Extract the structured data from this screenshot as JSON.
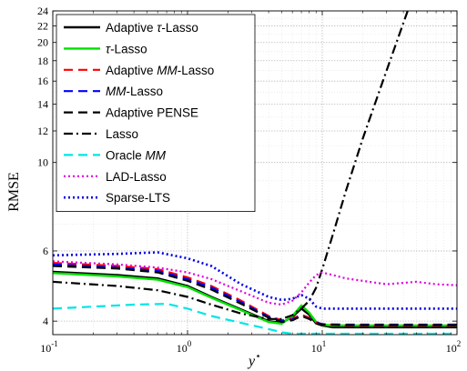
{
  "chart_data": {
    "type": "line",
    "xlabel": "y⋆",
    "ylabel": "RMSE",
    "xscale": "log",
    "yscale": "log",
    "xlim": [
      0.1,
      100
    ],
    "ylim": [
      3.7,
      24
    ],
    "grid": true,
    "legend_position": "top-left",
    "x_ticks": [
      {
        "value": 0.1,
        "base": "10",
        "exp": "-1"
      },
      {
        "value": 1,
        "base": "10",
        "exp": "0"
      },
      {
        "value": 10,
        "base": "10",
        "exp": "1"
      },
      {
        "value": 100,
        "base": "10",
        "exp": "2"
      }
    ],
    "y_ticks": [
      {
        "value": 4,
        "label": "4"
      },
      {
        "value": 6,
        "label": "6"
      },
      {
        "value": 10,
        "label": "10"
      },
      {
        "value": 12,
        "label": "12"
      },
      {
        "value": 14,
        "label": "14"
      },
      {
        "value": 16,
        "label": "16"
      },
      {
        "value": 18,
        "label": "18"
      },
      {
        "value": 20,
        "label": "20"
      },
      {
        "value": 22,
        "label": "22"
      },
      {
        "value": 24,
        "label": "24"
      }
    ],
    "series": [
      {
        "name": "Adaptive τ-Lasso",
        "name_parts": [
          [
            "Adaptive ",
            false
          ],
          [
            "τ",
            true
          ],
          [
            "-Lasso",
            false
          ]
        ],
        "color": "#000000",
        "dash": "solid",
        "width": 2.4,
        "x": [
          0.1,
          0.3,
          0.6,
          1,
          1.5,
          2.5,
          4,
          5,
          6,
          7,
          8,
          9,
          10,
          12,
          20,
          50,
          100
        ],
        "y": [
          5.32,
          5.22,
          5.12,
          4.9,
          4.6,
          4.28,
          4.0,
          3.96,
          4.1,
          4.3,
          4.15,
          3.95,
          3.9,
          3.86,
          3.86,
          3.86,
          3.86
        ]
      },
      {
        "name": "τ-Lasso",
        "name_parts": [
          [
            "τ",
            true
          ],
          [
            "-Lasso",
            false
          ]
        ],
        "color": "#00e000",
        "dash": "solid",
        "width": 2.4,
        "x": [
          0.1,
          0.3,
          0.6,
          1,
          1.5,
          2.5,
          4,
          5,
          6,
          7,
          8,
          9,
          10,
          12,
          20,
          50,
          100
        ],
        "y": [
          5.28,
          5.18,
          5.08,
          4.87,
          4.58,
          4.26,
          3.98,
          3.94,
          4.12,
          4.38,
          4.2,
          3.98,
          3.92,
          3.9,
          3.9,
          3.9,
          3.9
        ]
      },
      {
        "name": "Adaptive MM-Lasso",
        "name_parts": [
          [
            "Adaptive ",
            false
          ],
          [
            "MM",
            true
          ],
          [
            "-Lasso",
            false
          ]
        ],
        "color": "#ff0000",
        "dash": "10,6",
        "width": 2.2,
        "x": [
          0.1,
          0.3,
          0.6,
          1,
          1.5,
          2.5,
          4,
          5,
          6,
          7,
          8,
          9,
          10,
          15,
          30,
          100
        ],
        "y": [
          5.6,
          5.5,
          5.4,
          5.15,
          4.9,
          4.5,
          4.12,
          4.02,
          4.06,
          4.15,
          4.08,
          3.98,
          3.93,
          3.9,
          3.9,
          3.9
        ]
      },
      {
        "name": "MM-Lasso",
        "name_parts": [
          [
            "MM",
            true
          ],
          [
            "-Lasso",
            false
          ]
        ],
        "color": "#0000ff",
        "dash": "10,6",
        "width": 2.2,
        "x": [
          0.1,
          0.3,
          0.6,
          1,
          1.5,
          2.5,
          4,
          5,
          6,
          7,
          8,
          9,
          10,
          15,
          30,
          100
        ],
        "y": [
          5.55,
          5.45,
          5.35,
          5.1,
          4.86,
          4.46,
          4.1,
          4.0,
          4.04,
          4.12,
          4.06,
          3.97,
          3.93,
          3.92,
          3.92,
          3.92
        ]
      },
      {
        "name": "Adaptive PENSE",
        "name_parts": [
          [
            "Adaptive PENSE",
            false
          ]
        ],
        "color": "#000000",
        "dash": "10,6",
        "width": 2.2,
        "x": [
          0.1,
          0.3,
          0.6,
          1,
          1.5,
          2.5,
          4,
          5,
          6,
          7,
          8,
          9,
          10,
          15,
          30,
          100
        ],
        "y": [
          5.5,
          5.42,
          5.3,
          5.05,
          4.8,
          4.42,
          4.08,
          3.98,
          4.02,
          4.12,
          4.05,
          3.96,
          3.92,
          3.91,
          3.91,
          3.91
        ]
      },
      {
        "name": "Lasso",
        "name_parts": [
          [
            "Lasso",
            false
          ]
        ],
        "color": "#000000",
        "dash": "10,4,2,4",
        "width": 2.2,
        "x": [
          0.1,
          0.3,
          0.6,
          1,
          1.5,
          2.5,
          4,
          5,
          6,
          7,
          8,
          9,
          10,
          12,
          15,
          20,
          30,
          43
        ],
        "y": [
          5.02,
          4.9,
          4.78,
          4.6,
          4.4,
          4.18,
          4.05,
          4.05,
          4.14,
          4.3,
          4.5,
          4.85,
          5.4,
          6.6,
          8.5,
          11.5,
          17.0,
          24
        ]
      },
      {
        "name": "Oracle MM",
        "name_parts": [
          [
            "Oracle ",
            false
          ],
          [
            "MM",
            true
          ]
        ],
        "color": "#00e5e5",
        "dash": "10,6",
        "width": 2.2,
        "x": [
          0.1,
          0.2,
          0.4,
          0.7,
          1,
          1.5,
          2.5,
          4,
          5,
          6,
          7,
          8,
          10,
          20,
          100
        ],
        "y": [
          4.3,
          4.35,
          4.4,
          4.42,
          4.3,
          4.12,
          3.96,
          3.82,
          3.75,
          3.72,
          3.72,
          3.72,
          3.72,
          3.72,
          3.72
        ]
      },
      {
        "name": "LAD-Lasso",
        "name_parts": [
          [
            "LAD-Lasso",
            false
          ]
        ],
        "color": "#e000e0",
        "dash": "2,3",
        "width": 2.2,
        "x": [
          0.1,
          0.3,
          0.6,
          1,
          1.5,
          2.5,
          4,
          5,
          6,
          7,
          8,
          9,
          10,
          15,
          30,
          50,
          70,
          100
        ],
        "y": [
          5.65,
          5.55,
          5.45,
          5.3,
          5.1,
          4.75,
          4.45,
          4.4,
          4.5,
          4.72,
          5.0,
          5.22,
          5.3,
          5.12,
          4.95,
          5.02,
          4.95,
          4.92
        ]
      },
      {
        "name": "Sparse-LTS",
        "name_parts": [
          [
            "Sparse-LTS",
            false
          ]
        ],
        "color": "#0000e6",
        "dash": "2,3",
        "width": 2.6,
        "x": [
          0.1,
          0.3,
          0.6,
          1,
          1.5,
          2.5,
          4,
          5,
          6,
          7,
          8,
          9,
          10,
          20,
          100
        ],
        "y": [
          5.85,
          5.9,
          5.95,
          5.75,
          5.5,
          4.95,
          4.6,
          4.52,
          4.55,
          4.65,
          4.55,
          4.35,
          4.3,
          4.3,
          4.3
        ]
      }
    ]
  }
}
